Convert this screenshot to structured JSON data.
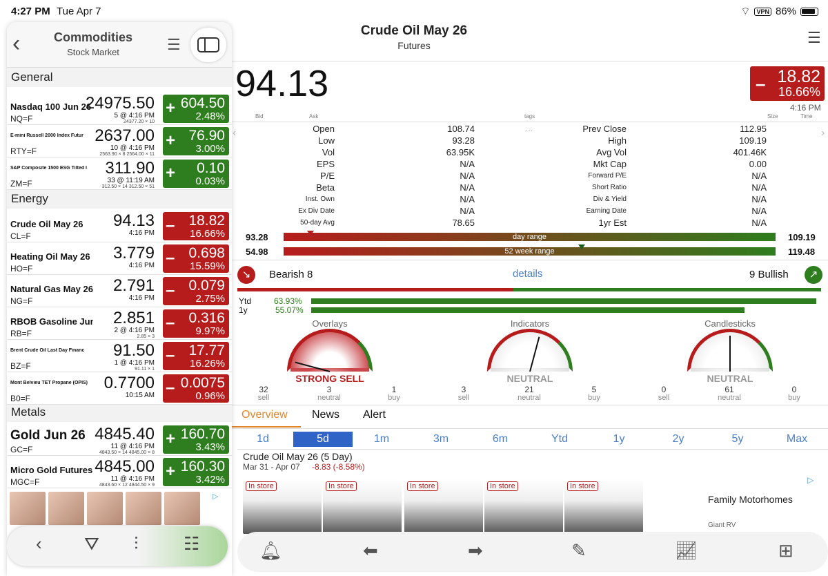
{
  "status": {
    "time": "4:27 PM",
    "date": "Tue Apr 7",
    "vpn": "VPN",
    "battery": "86%"
  },
  "left": {
    "title": "Commodities",
    "subtitle": "Stock Market",
    "sections": [
      "General",
      "Energy",
      "Metals"
    ],
    "rows": [
      {
        "name": "Nasdaq 100 Jun 26",
        "sym": "NQ=F",
        "price": "24975.50",
        "time": "5 @ 4:16 PM",
        "sub": "24377.20 × 10",
        "sign": "+",
        "chg": "604.50",
        "pct": "2.48%",
        "dir": "g"
      },
      {
        "name": "E-mini Russell 2000 Index Futur",
        "sym": "RTY=F",
        "price": "2637.00",
        "time": "10 @ 4:16 PM",
        "sub": "2563.90 × 8   2564.00 × 11",
        "sign": "+",
        "chg": "76.90",
        "pct": "3.00%",
        "dir": "g"
      },
      {
        "name": "S&P Composite 1500 ESG Tilted I",
        "sym": "ZM=F",
        "price": "311.90",
        "time": "33 @ 11:19 AM",
        "sub": "312.50 × 14   312.50 × 51",
        "sign": "+",
        "chg": "0.10",
        "pct": "0.03%",
        "dir": "g"
      },
      {
        "name": "Crude Oil May 26",
        "sym": "CL=F",
        "price": "94.13",
        "time": "4:16 PM",
        "sub": "",
        "sign": "–",
        "chg": "18.82",
        "pct": "16.66%",
        "dir": "r"
      },
      {
        "name": "Heating Oil May 26",
        "sym": "HO=F",
        "price": "3.779",
        "time": "4:16 PM",
        "sub": "",
        "sign": "–",
        "chg": "0.698",
        "pct": "15.59%",
        "dir": "r"
      },
      {
        "name": "Natural Gas May 26",
        "sym": "NG=F",
        "price": "2.791",
        "time": "4:16 PM",
        "sub": "",
        "sign": "–",
        "chg": "0.079",
        "pct": "2.75%",
        "dir": "r"
      },
      {
        "name": "RBOB Gasoline Jun 26",
        "sym": "RB=F",
        "price": "2.851",
        "time": "2 @ 4:16 PM",
        "sub": "2.85 × 3",
        "sign": "–",
        "chg": "0.316",
        "pct": "9.97%",
        "dir": "r"
      },
      {
        "name": "Brent Crude Oil Last Day Financ",
        "sym": "BZ=F",
        "price": "91.50",
        "time": "1 @ 4:16 PM",
        "sub": "91.11 × 1",
        "sign": "–",
        "chg": "17.77",
        "pct": "16.26%",
        "dir": "r"
      },
      {
        "name": "Mont Belvieu TET Propane (OPIS)",
        "sym": "B0=F",
        "price": "0.7700",
        "time": "10:15 AM",
        "sub": "",
        "sign": "–",
        "chg": "0.0075",
        "pct": "0.96%",
        "dir": "r"
      },
      {
        "name": "Gold Jun 26",
        "sym": "GC=F",
        "price": "4845.40",
        "time": "11 @ 4:16 PM",
        "sub": "4843.50 × 14   4845.00 × 8",
        "sign": "+",
        "chg": "160.70",
        "pct": "3.43%",
        "dir": "g"
      },
      {
        "name": "Micro Gold Futures,Jun-2026",
        "sym": "MGC=F",
        "price": "4845.00",
        "time": "11 @ 4:16 PM",
        "sub": "4843.60 × 12   4844.50 × 9",
        "sign": "+",
        "chg": "160.30",
        "pct": "3.42%",
        "dir": "g"
      }
    ]
  },
  "detail": {
    "title": "Crude Oil May 26",
    "subtitle": "Futures",
    "price": "94.13",
    "sign": "–",
    "chg": "18.82",
    "pct": "16.66%",
    "time": "4:16 PM",
    "labels": {
      "bid": "Bid",
      "ask": "Ask",
      "tags": "tags",
      "size": "Size",
      "time": "Time"
    },
    "stats_left": [
      [
        "Open",
        "108.74"
      ],
      [
        "Low",
        "93.28"
      ],
      [
        "Vol",
        "63.95K"
      ],
      [
        "EPS",
        "N/A"
      ],
      [
        "P/E",
        "N/A"
      ],
      [
        "Beta",
        "N/A"
      ],
      [
        "Inst. Own",
        "N/A"
      ],
      [
        "Ex Div Date",
        "N/A"
      ],
      [
        "50-day Avg",
        "78.65"
      ]
    ],
    "stats_right": [
      [
        "Prev Close",
        "112.95"
      ],
      [
        "High",
        "109.19"
      ],
      [
        "Avg Vol",
        "401.46K"
      ],
      [
        "Mkt Cap",
        "0.00"
      ],
      [
        "Forward P/E",
        "N/A"
      ],
      [
        "Short Ratio",
        "N/A"
      ],
      [
        "Div & Yield",
        "N/A"
      ],
      [
        "Earning Date",
        "N/A"
      ],
      [
        "1yr Est",
        "N/A"
      ]
    ],
    "day_range": {
      "low": "93.28",
      "high": "109.19",
      "label": "day range"
    },
    "week52_range": {
      "low": "54.98",
      "high": "119.48",
      "label": "52 week range"
    },
    "bearish": "Bearish 8",
    "bullish": "9 Bullish",
    "details": "details",
    "ytd": {
      "label": "Ytd",
      "value": "63.93%",
      "fraction": 0.99
    },
    "y1": {
      "label": "1y",
      "value": "55.07%",
      "fraction": 0.85
    },
    "gauges": [
      {
        "title": "Overlays",
        "label": "STRONG SELL",
        "sell": "32",
        "neutral": "3",
        "buy": "1",
        "color": "#b71c1c"
      },
      {
        "title": "Indicators",
        "label": "NEUTRAL",
        "sell": "3",
        "neutral": "21",
        "buy": "5",
        "color": "#999"
      },
      {
        "title": "Candlesticks",
        "label": "NEUTRAL",
        "sell": "0",
        "neutral": "61",
        "buy": "0",
        "color": "#999"
      }
    ],
    "gauge_words": {
      "sell": "sell",
      "neutral": "neutral",
      "buy": "buy"
    },
    "tabs": [
      "Overview",
      "News",
      "Alert"
    ],
    "periods": [
      "1d",
      "5d",
      "1m",
      "3m",
      "6m",
      "Ytd",
      "1y",
      "2y",
      "5y",
      "Max"
    ],
    "chart_title": "Crude Oil May 26 (5 Day)",
    "chart_range": "Mar 31 - Apr 07",
    "chart_change": "-8.83 (-8.58%)"
  },
  "ad": {
    "instore": "In store",
    "title": "Family Motorhomes",
    "advertiser": "Giant RV"
  }
}
